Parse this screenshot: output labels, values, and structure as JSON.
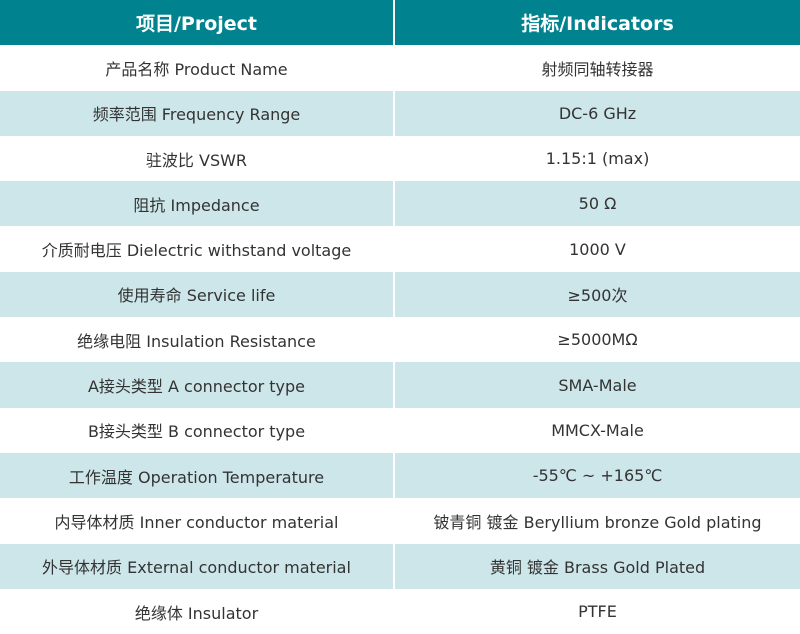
{
  "header": {
    "project": "项目/Project",
    "indicators": "指标/Indicators"
  },
  "colors": {
    "header_bg": "#00838f",
    "alt_row_bg": "#cde6ea"
  },
  "rows": [
    {
      "project": "产品名称 Product Name",
      "value": "射频同轴转接器"
    },
    {
      "project": "频率范围 Frequency Range",
      "value": "DC-6 GHz"
    },
    {
      "project": "驻波比 VSWR",
      "value": "1.15:1 (max)"
    },
    {
      "project": "阻抗 Impedance",
      "value": "50 Ω"
    },
    {
      "project": "介质耐电压 Dielectric withstand voltage",
      "value": "1000 V"
    },
    {
      "project": "使用寿命 Service life",
      "value": "≥500次"
    },
    {
      "project": "绝缘电阻 Insulation Resistance",
      "value": "≥5000MΩ"
    },
    {
      "project": "A接头类型 A connector type",
      "value": "SMA-Male"
    },
    {
      "project": "B接头类型 B connector type",
      "value": "MMCX-Male"
    },
    {
      "project": "工作温度 Operation Temperature",
      "value": "-55℃ ~ +165℃"
    },
    {
      "project": "内导体材质 Inner conductor material",
      "value": "铍青铜 镀金 Beryllium bronze Gold plating"
    },
    {
      "project": "外导体材质 External conductor material",
      "value": "黄铜 镀金 Brass Gold Plated"
    },
    {
      "project": "绝缘体 Insulator",
      "value": "PTFE"
    }
  ]
}
